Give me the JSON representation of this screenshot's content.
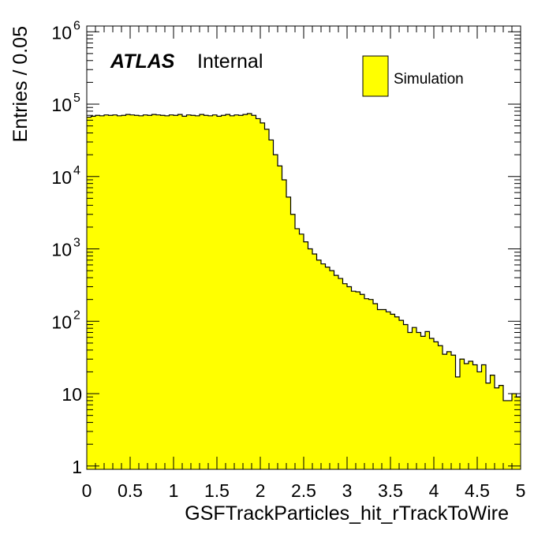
{
  "chart_data": {
    "type": "bar",
    "xlabel": "GSFTrackParticles_hit_rTrackToWire",
    "ylabel": "Entries / 0.05",
    "xlim": [
      0,
      5
    ],
    "ylim": [
      0.9,
      1200000
    ],
    "y_scale": "log",
    "bin_width": 0.05,
    "x_ticks": [
      {
        "v": 0,
        "label": "0"
      },
      {
        "v": 0.5,
        "label": "0.5"
      },
      {
        "v": 1,
        "label": "1"
      },
      {
        "v": 1.5,
        "label": "1.5"
      },
      {
        "v": 2,
        "label": "2"
      },
      {
        "v": 2.5,
        "label": "2.5"
      },
      {
        "v": 3,
        "label": "3"
      },
      {
        "v": 3.5,
        "label": "3.5"
      },
      {
        "v": 4,
        "label": "4"
      },
      {
        "v": 4.5,
        "label": "4.5"
      },
      {
        "v": 5,
        "label": "5"
      }
    ],
    "y_ticks": [
      {
        "v": 1,
        "base": "1",
        "exp": ""
      },
      {
        "v": 10,
        "base": "10",
        "exp": ""
      },
      {
        "v": 100,
        "base": "10",
        "exp": "2"
      },
      {
        "v": 1000,
        "base": "10",
        "exp": "3"
      },
      {
        "v": 10000,
        "base": "10",
        "exp": "4"
      },
      {
        "v": 100000,
        "base": "10",
        "exp": "5"
      },
      {
        "v": 1000000,
        "base": "10",
        "exp": "6"
      }
    ],
    "series": [
      {
        "name": "Simulation",
        "color": "#ffff00",
        "edge_color": "#000000",
        "values": [
          66000,
          68000,
          70000,
          69000,
          71000,
          70000,
          71000,
          69000,
          70000,
          72000,
          71000,
          70000,
          69000,
          71000,
          70000,
          72000,
          71000,
          70000,
          69000,
          71000,
          70000,
          72000,
          68000,
          71000,
          70000,
          69000,
          72000,
          70000,
          69000,
          71000,
          68000,
          70000,
          72000,
          69000,
          71000,
          70000,
          72000,
          74000,
          70000,
          63000,
          55000,
          45000,
          32000,
          20000,
          14000,
          9000,
          5200,
          3000,
          1900,
          1600,
          1250,
          1000,
          850,
          700,
          620,
          560,
          500,
          430,
          390,
          330,
          300,
          260,
          255,
          235,
          205,
          200,
          175,
          145,
          145,
          135,
          125,
          115,
          103,
          90,
          70,
          82,
          70,
          62,
          72,
          58,
          52,
          46,
          35,
          38,
          34,
          17,
          30,
          26,
          28,
          25,
          20,
          25,
          14,
          18,
          12,
          13,
          8,
          8,
          10,
          9,
          14,
          11,
          13,
          10,
          15
        ]
      }
    ],
    "legend": {
      "position": "top-right",
      "entries": [
        "Simulation"
      ]
    },
    "annotations": {
      "atlas": "ATLAS",
      "status": "Internal"
    }
  }
}
